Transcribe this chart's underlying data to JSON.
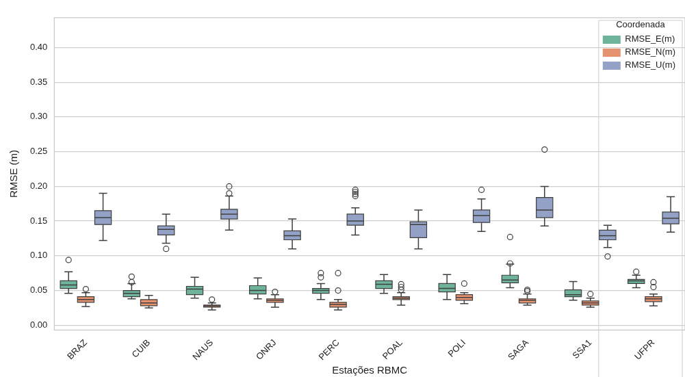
{
  "chart_data": {
    "type": "box",
    "xlabel": "Estações RBMC",
    "ylabel": "RMSE (m)",
    "legend_title": "Coordenada",
    "legend": "top right",
    "grid": "y",
    "marker": "circle",
    "categories": [
      "BRAZ",
      "CUIB",
      "NAUS",
      "ONRJ",
      "PERC",
      "POAL",
      "POLI",
      "SAGA",
      "SSA1",
      "UFPR"
    ],
    "ylim": [
      -0.007,
      0.443
    ],
    "yticks": [
      {
        "value": 0,
        "label": "0.00"
      },
      {
        "value": 0.05,
        "label": "0.05"
      },
      {
        "value": 0.1,
        "label": "0.10"
      },
      {
        "value": 0.15,
        "label": "0.15"
      },
      {
        "value": 0.2,
        "label": "0.20"
      },
      {
        "value": 0.25,
        "label": "0.25"
      },
      {
        "value": 0.3,
        "label": "0.30"
      },
      {
        "value": 0.35,
        "label": "0.35"
      },
      {
        "value": 0.4,
        "label": "0.40"
      }
    ],
    "series": [
      {
        "name": "RMSE_E(m)",
        "color": "#6db49a",
        "boxes": [
          {
            "low": 0.046,
            "q1": 0.053,
            "median": 0.058,
            "q3": 0.064,
            "high": 0.077,
            "outliers": [
              0.094
            ]
          },
          {
            "low": 0.038,
            "q1": 0.041,
            "median": 0.046,
            "q3": 0.05,
            "high": 0.06,
            "outliers": [
              0.062,
              0.07
            ]
          },
          {
            "low": 0.039,
            "q1": 0.044,
            "median": 0.052,
            "q3": 0.056,
            "high": 0.069
          },
          {
            "low": 0.038,
            "q1": 0.045,
            "median": 0.05,
            "q3": 0.057,
            "high": 0.068
          },
          {
            "low": 0.037,
            "q1": 0.046,
            "median": 0.05,
            "q3": 0.053,
            "high": 0.06,
            "outliers": [
              0.069,
              0.075
            ]
          },
          {
            "low": 0.046,
            "q1": 0.053,
            "median": 0.059,
            "q3": 0.064,
            "high": 0.073
          },
          {
            "low": 0.037,
            "q1": 0.048,
            "median": 0.053,
            "q3": 0.06,
            "high": 0.073
          },
          {
            "low": 0.054,
            "q1": 0.061,
            "median": 0.065,
            "q3": 0.072,
            "high": 0.088,
            "outliers": [
              0.089,
              0.127
            ]
          },
          {
            "low": 0.036,
            "q1": 0.041,
            "median": 0.044,
            "q3": 0.051,
            "high": 0.063
          },
          {
            "low": 0.054,
            "q1": 0.06,
            "median": 0.064,
            "q3": 0.066,
            "high": 0.072,
            "outliers": [
              0.077
            ]
          }
        ]
      },
      {
        "name": "RMSE_N(m)",
        "color": "#e6926e",
        "boxes": [
          {
            "low": 0.027,
            "q1": 0.033,
            "median": 0.037,
            "q3": 0.041,
            "high": 0.047,
            "outliers": [
              0.052
            ]
          },
          {
            "low": 0.025,
            "q1": 0.028,
            "median": 0.032,
            "q3": 0.037,
            "high": 0.043
          },
          {
            "low": 0.022,
            "q1": 0.026,
            "median": 0.028,
            "q3": 0.029,
            "high": 0.032,
            "outliers": [
              0.037
            ]
          },
          {
            "low": 0.026,
            "q1": 0.033,
            "median": 0.036,
            "q3": 0.038,
            "high": 0.044,
            "outliers": [
              0.048
            ]
          },
          {
            "low": 0.022,
            "q1": 0.026,
            "median": 0.03,
            "q3": 0.033,
            "high": 0.037,
            "outliers": [
              0.05,
              0.075
            ]
          },
          {
            "low": 0.029,
            "q1": 0.037,
            "median": 0.039,
            "q3": 0.041,
            "high": 0.047,
            "outliers": [
              0.051,
              0.055,
              0.059
            ]
          },
          {
            "low": 0.031,
            "q1": 0.036,
            "median": 0.04,
            "q3": 0.044,
            "high": 0.047,
            "outliers": [
              0.06
            ]
          },
          {
            "low": 0.029,
            "q1": 0.032,
            "median": 0.036,
            "q3": 0.038,
            "high": 0.045,
            "outliers": [
              0.049,
              0.051
            ]
          },
          {
            "low": 0.026,
            "q1": 0.029,
            "median": 0.032,
            "q3": 0.035,
            "high": 0.039,
            "outliers": [
              0.045
            ]
          },
          {
            "low": 0.028,
            "q1": 0.034,
            "median": 0.038,
            "q3": 0.041,
            "high": 0.045,
            "outliers": [
              0.055,
              0.062
            ]
          }
        ]
      },
      {
        "name": "RMSE_U(m)",
        "color": "#93a1c6",
        "boxes": [
          {
            "low": 0.122,
            "q1": 0.145,
            "median": 0.155,
            "q3": 0.165,
            "high": 0.19
          },
          {
            "low": 0.118,
            "q1": 0.13,
            "median": 0.138,
            "q3": 0.143,
            "high": 0.16,
            "outliers": [
              0.11
            ]
          },
          {
            "low": 0.137,
            "q1": 0.153,
            "median": 0.16,
            "q3": 0.167,
            "high": 0.186,
            "outliers": [
              0.19,
              0.2
            ]
          },
          {
            "low": 0.11,
            "q1": 0.123,
            "median": 0.129,
            "q3": 0.136,
            "high": 0.153
          },
          {
            "low": 0.13,
            "q1": 0.144,
            "median": 0.15,
            "q3": 0.16,
            "high": 0.169,
            "outliers": [
              0.186,
              0.189,
              0.192,
              0.195
            ]
          },
          {
            "low": 0.11,
            "q1": 0.126,
            "median": 0.145,
            "q3": 0.149,
            "high": 0.166
          },
          {
            "low": 0.135,
            "q1": 0.148,
            "median": 0.158,
            "q3": 0.166,
            "high": 0.182,
            "outliers": [
              0.195
            ]
          },
          {
            "low": 0.143,
            "q1": 0.155,
            "median": 0.166,
            "q3": 0.184,
            "high": 0.2,
            "outliers": [
              0.253
            ]
          },
          {
            "low": 0.112,
            "q1": 0.123,
            "median": 0.129,
            "q3": 0.137,
            "high": 0.144,
            "outliers": [
              0.099
            ]
          },
          {
            "low": 0.134,
            "q1": 0.146,
            "median": 0.154,
            "q3": 0.163,
            "high": 0.185
          }
        ]
      }
    ]
  }
}
